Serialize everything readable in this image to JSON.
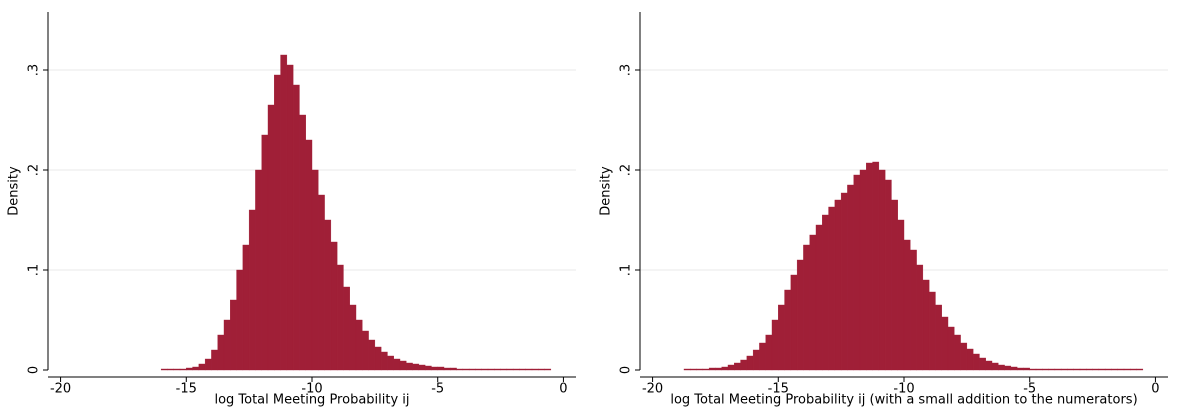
{
  "chart_data": [
    {
      "type": "histogram",
      "x_label": "log Total Meeting Probability ij",
      "y_label": "Density",
      "color": "#a01f37",
      "grid": true,
      "xlim": [
        -20.5,
        0.5
      ],
      "ylim": [
        0,
        0.358
      ],
      "xticks": [
        -20,
        -15,
        -10,
        -5,
        0
      ],
      "yticks": [
        0,
        {
          "value": 0.1,
          "label": ".1"
        },
        {
          "value": 0.2,
          "label": ".2"
        },
        {
          "value": 0.3,
          "label": ".3"
        }
      ],
      "bins": [
        -16,
        -15.75,
        -15.5,
        -15.25,
        -15,
        -14.75,
        -14.5,
        -14.25,
        -14,
        -13.75,
        -13.5,
        -13.25,
        -13,
        -12.75,
        -12.5,
        -12.25,
        -12,
        -11.75,
        -11.5,
        -11.25,
        -11,
        -10.75,
        -10.5,
        -10.25,
        -10,
        -9.75,
        -9.5,
        -9.25,
        -9,
        -8.75,
        -8.5,
        -8.25,
        -8,
        -7.75,
        -7.5,
        -7.25,
        -7,
        -6.75,
        -6.5,
        -6.25,
        -6,
        -5.75,
        -5.5,
        -5.25,
        -5,
        -4.75,
        -4.5,
        -4.25,
        -4,
        -3.75,
        -3.5,
        -3.25,
        -3,
        -2.75,
        -2.5,
        -2.25,
        -2,
        -1.75,
        -1.5,
        -1.25,
        -1,
        -0.75,
        -0.5
      ],
      "values": [
        0.001,
        0.001,
        0.001,
        0.001,
        0.002,
        0.003,
        0.006,
        0.011,
        0.02,
        0.035,
        0.05,
        0.07,
        0.1,
        0.125,
        0.16,
        0.2,
        0.235,
        0.265,
        0.295,
        0.315,
        0.305,
        0.285,
        0.255,
        0.23,
        0.2,
        0.175,
        0.15,
        0.128,
        0.105,
        0.083,
        0.065,
        0.05,
        0.039,
        0.03,
        0.023,
        0.018,
        0.014,
        0.011,
        0.009,
        0.007,
        0.006,
        0.005,
        0.004,
        0.003,
        0.003,
        0.002,
        0.002,
        0.001,
        0.001,
        0.001,
        0.001,
        0.001,
        0.001,
        0.001,
        0.001,
        0.001,
        0.001,
        0.001,
        0.001,
        0.001,
        0.001,
        0.001
      ]
    },
    {
      "type": "histogram",
      "x_label": "log Total Meeting Probability ij (with a small addition to the numerators)",
      "y_label": "Density",
      "color": "#a01f37",
      "grid": true,
      "xlim": [
        -20.5,
        0.5
      ],
      "ylim": [
        0,
        0.358
      ],
      "xticks": [
        -20,
        -15,
        -10,
        -5,
        0
      ],
      "yticks": [
        0,
        {
          "value": 0.1,
          "label": ".1"
        },
        {
          "value": 0.2,
          "label": ".2"
        },
        {
          "value": 0.3,
          "label": ".3"
        }
      ],
      "bins": [
        -18.75,
        -18.5,
        -18.25,
        -18,
        -17.75,
        -17.5,
        -17.25,
        -17,
        -16.75,
        -16.5,
        -16.25,
        -16,
        -15.75,
        -15.5,
        -15.25,
        -15,
        -14.75,
        -14.5,
        -14.25,
        -14,
        -13.75,
        -13.5,
        -13.25,
        -13,
        -12.75,
        -12.5,
        -12.25,
        -12,
        -11.75,
        -11.5,
        -11.25,
        -11,
        -10.75,
        -10.5,
        -10.25,
        -10,
        -9.75,
        -9.5,
        -9.25,
        -9,
        -8.75,
        -8.5,
        -8.25,
        -8,
        -7.75,
        -7.5,
        -7.25,
        -7,
        -6.75,
        -6.5,
        -6.25,
        -6,
        -5.75,
        -5.5,
        -5.25,
        -5,
        -4.75,
        -4.5,
        -4.25,
        -4,
        -3.75,
        -3.5,
        -3.25,
        -3,
        -2.75,
        -2.5,
        -2.25,
        -2,
        -1.75,
        -1.5,
        -1.25,
        -1,
        -0.75,
        -0.5
      ],
      "values": [
        0.001,
        0.001,
        0.001,
        0.001,
        0.002,
        0.002,
        0.003,
        0.005,
        0.007,
        0.01,
        0.014,
        0.02,
        0.027,
        0.035,
        0.05,
        0.065,
        0.08,
        0.095,
        0.11,
        0.125,
        0.135,
        0.145,
        0.155,
        0.163,
        0.17,
        0.177,
        0.185,
        0.195,
        0.2,
        0.207,
        0.208,
        0.2,
        0.19,
        0.17,
        0.15,
        0.13,
        0.12,
        0.105,
        0.09,
        0.078,
        0.065,
        0.053,
        0.043,
        0.035,
        0.027,
        0.021,
        0.016,
        0.012,
        0.009,
        0.007,
        0.005,
        0.004,
        0.003,
        0.002,
        0.002,
        0.001,
        0.001,
        0.001,
        0.001,
        0.001,
        0.001,
        0.001,
        0.001,
        0.001,
        0.001,
        0.001,
        0.001,
        0.001,
        0.001,
        0.001,
        0.001,
        0.001,
        0.001
      ]
    }
  ]
}
